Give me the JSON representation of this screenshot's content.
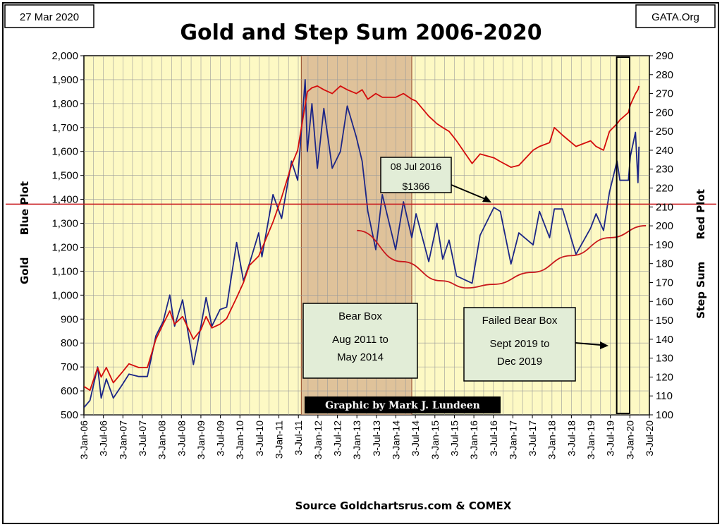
{
  "header": {
    "date_label": "27 Mar 2020",
    "source_tag": "GATA.Org",
    "title": "Gold and Step Sum 2006-2020"
  },
  "footer": {
    "source": "Source Goldchartsrus.com & COMEX",
    "credit": "Graphic by Mark J. Lundeen"
  },
  "annotations": {
    "bear_box": [
      "Bear Box",
      "Aug 2011 to",
      "May 2014"
    ],
    "failed_bear_box": [
      "Failed Bear Box",
      "Sept 2019 to",
      "Dec 2019"
    ],
    "callout": [
      "08 Jul 2016",
      "$1366"
    ]
  },
  "colors": {
    "plot_background": "#fdf9c4",
    "gold_series": "#1c2687",
    "step_sum_series": "#d40c0c",
    "bear_box_fill": "#dfc29a",
    "reference_line": "#c8181c",
    "callout_fill": "#e2edd7"
  },
  "chart_data": {
    "type": "line",
    "title": "Gold and Step Sum 2006-2020",
    "xlabel": "",
    "ylabel_left": "Gold      Blue Plot",
    "ylabel_right": "Step Sum      Red Plot",
    "x_ticks": [
      "3-Jan-06",
      "3-Jul-06",
      "3-Jan-07",
      "3-Jul-07",
      "3-Jan-08",
      "3-Jul-08",
      "3-Jan-09",
      "3-Jul-09",
      "3-Jan-10",
      "3-Jul-10",
      "3-Jan-11",
      "3-Jul-11",
      "3-Jan-12",
      "3-Jul-12",
      "3-Jan-13",
      "3-Jul-13",
      "3-Jan-14",
      "3-Jul-14",
      "3-Jan-15",
      "3-Jul-15",
      "3-Jan-16",
      "3-Jul-16",
      "3-Jan-17",
      "3-Jul-17",
      "3-Jan-18",
      "3-Jul-18",
      "3-Jan-19",
      "3-Jul-19",
      "3-Jan-20",
      "3-Jul-20"
    ],
    "xlim": [
      "2006-01-03",
      "2020-07-03"
    ],
    "y_left": {
      "lim": [
        500,
        2000
      ],
      "ticks": [
        "500",
        "600",
        "700",
        "800",
        "900",
        "1,000",
        "1,100",
        "1,200",
        "1,300",
        "1,400",
        "1,500",
        "1,600",
        "1,700",
        "1,800",
        "1,900",
        "2,000"
      ]
    },
    "y_right": {
      "lim": [
        100,
        290
      ],
      "ticks": [
        "100",
        "110",
        "120",
        "130",
        "140",
        "150",
        "160",
        "170",
        "180",
        "190",
        "200",
        "210",
        "220",
        "230",
        "240",
        "250",
        "260",
        "270",
        "280",
        "290"
      ]
    },
    "grid": true,
    "series": [
      {
        "name": "Gold",
        "axis": "left",
        "points": [
          [
            "2006-01-03",
            530
          ],
          [
            "2006-03-01",
            560
          ],
          [
            "2006-05-12",
            700
          ],
          [
            "2006-06-14",
            570
          ],
          [
            "2006-08-01",
            650
          ],
          [
            "2006-10-05",
            570
          ],
          [
            "2007-01-03",
            630
          ],
          [
            "2007-03-01",
            670
          ],
          [
            "2007-06-01",
            660
          ],
          [
            "2007-08-20",
            660
          ],
          [
            "2007-11-08",
            830
          ],
          [
            "2008-01-15",
            890
          ],
          [
            "2008-03-17",
            1000
          ],
          [
            "2008-05-01",
            870
          ],
          [
            "2008-07-15",
            980
          ],
          [
            "2008-10-24",
            710
          ],
          [
            "2009-01-02",
            870
          ],
          [
            "2009-02-20",
            990
          ],
          [
            "2009-04-15",
            870
          ],
          [
            "2009-07-01",
            940
          ],
          [
            "2009-09-01",
            950
          ],
          [
            "2009-12-03",
            1220
          ],
          [
            "2010-02-05",
            1060
          ],
          [
            "2010-04-01",
            1130
          ],
          [
            "2010-06-28",
            1260
          ],
          [
            "2010-07-28",
            1160
          ],
          [
            "2010-11-09",
            1420
          ],
          [
            "2011-01-28",
            1320
          ],
          [
            "2011-05-01",
            1560
          ],
          [
            "2011-06-28",
            1480
          ],
          [
            "2011-09-06",
            1900
          ],
          [
            "2011-09-26",
            1600
          ],
          [
            "2011-11-08",
            1800
          ],
          [
            "2011-12-29",
            1530
          ],
          [
            "2012-02-28",
            1780
          ],
          [
            "2012-05-16",
            1530
          ],
          [
            "2012-08-01",
            1600
          ],
          [
            "2012-10-04",
            1790
          ],
          [
            "2012-12-28",
            1660
          ],
          [
            "2013-02-20",
            1560
          ],
          [
            "2013-04-15",
            1350
          ],
          [
            "2013-06-28",
            1190
          ],
          [
            "2013-08-28",
            1420
          ],
          [
            "2013-12-31",
            1190
          ],
          [
            "2014-03-14",
            1390
          ],
          [
            "2014-06-01",
            1240
          ],
          [
            "2014-07-10",
            1340
          ],
          [
            "2014-11-06",
            1140
          ],
          [
            "2015-01-22",
            1300
          ],
          [
            "2015-03-17",
            1150
          ],
          [
            "2015-05-15",
            1230
          ],
          [
            "2015-07-24",
            1080
          ],
          [
            "2015-12-17",
            1050
          ],
          [
            "2016-03-01",
            1250
          ],
          [
            "2016-07-08",
            1366
          ],
          [
            "2016-09-06",
            1350
          ],
          [
            "2016-12-15",
            1130
          ],
          [
            "2017-02-27",
            1260
          ],
          [
            "2017-07-10",
            1210
          ],
          [
            "2017-09-08",
            1350
          ],
          [
            "2017-12-12",
            1240
          ],
          [
            "2018-01-25",
            1360
          ],
          [
            "2018-04-11",
            1360
          ],
          [
            "2018-08-16",
            1170
          ],
          [
            "2018-12-31",
            1280
          ],
          [
            "2019-02-20",
            1340
          ],
          [
            "2019-05-01",
            1270
          ],
          [
            "2019-06-25",
            1430
          ],
          [
            "2019-09-04",
            1560
          ],
          [
            "2019-10-01",
            1480
          ],
          [
            "2019-12-20",
            1480
          ],
          [
            "2020-01-07",
            1580
          ],
          [
            "2020-02-24",
            1680
          ],
          [
            "2020-03-18",
            1470
          ],
          [
            "2020-03-27",
            1620
          ]
        ]
      },
      {
        "name": "Step Sum",
        "axis": "right",
        "points": [
          [
            "2006-01-03",
            115
          ],
          [
            "2006-03-01",
            113
          ],
          [
            "2006-05-12",
            125
          ],
          [
            "2006-06-14",
            120
          ],
          [
            "2006-08-01",
            125
          ],
          [
            "2006-10-05",
            117
          ],
          [
            "2007-01-03",
            123
          ],
          [
            "2007-03-01",
            127
          ],
          [
            "2007-06-01",
            125
          ],
          [
            "2007-08-20",
            125
          ],
          [
            "2007-11-08",
            140
          ],
          [
            "2008-01-15",
            148
          ],
          [
            "2008-03-17",
            155
          ],
          [
            "2008-05-01",
            148
          ],
          [
            "2008-07-15",
            152
          ],
          [
            "2008-10-24",
            140
          ],
          [
            "2009-01-02",
            145
          ],
          [
            "2009-02-20",
            152
          ],
          [
            "2009-04-15",
            146
          ],
          [
            "2009-07-01",
            148
          ],
          [
            "2009-09-01",
            151
          ],
          [
            "2009-12-03",
            162
          ],
          [
            "2010-02-05",
            170
          ],
          [
            "2010-04-01",
            179
          ],
          [
            "2010-06-28",
            184
          ],
          [
            "2010-07-28",
            188
          ],
          [
            "2010-11-09",
            202
          ],
          [
            "2011-01-28",
            215
          ],
          [
            "2011-05-01",
            232
          ],
          [
            "2011-06-28",
            240
          ],
          [
            "2011-09-06",
            264
          ],
          [
            "2011-09-26",
            271
          ],
          [
            "2011-11-08",
            273
          ],
          [
            "2011-12-29",
            274
          ],
          [
            "2012-02-28",
            272
          ],
          [
            "2012-05-16",
            270
          ],
          [
            "2012-08-01",
            274
          ],
          [
            "2012-10-04",
            272
          ],
          [
            "2012-12-28",
            270
          ],
          [
            "2013-02-20",
            272
          ],
          [
            "2013-04-15",
            267
          ],
          [
            "2013-06-28",
            270
          ],
          [
            "2013-08-28",
            268
          ],
          [
            "2013-12-31",
            268
          ],
          [
            "2014-03-14",
            270
          ],
          [
            "2014-06-01",
            267
          ],
          [
            "2014-07-10",
            266
          ],
          [
            "2014-11-06",
            258
          ],
          [
            "2015-01-22",
            254
          ],
          [
            "2015-03-17",
            252
          ],
          [
            "2015-05-15",
            250
          ],
          [
            "2015-07-24",
            245
          ],
          [
            "2015-12-17",
            233
          ],
          [
            "2016-03-01",
            238
          ],
          [
            "2016-07-08",
            236
          ],
          [
            "2016-09-06",
            234
          ],
          [
            "2016-12-15",
            231
          ],
          [
            "2017-02-27",
            232
          ],
          [
            "2017-07-10",
            240
          ],
          [
            "2017-09-08",
            242
          ],
          [
            "2017-12-12",
            244
          ],
          [
            "2018-01-25",
            252
          ],
          [
            "2018-04-11",
            248
          ],
          [
            "2018-08-16",
            242
          ],
          [
            "2018-12-31",
            245
          ],
          [
            "2019-02-20",
            242
          ],
          [
            "2019-05-01",
            240
          ],
          [
            "2019-06-25",
            250
          ],
          [
            "2019-09-04",
            254
          ],
          [
            "2019-10-01",
            256
          ],
          [
            "2019-12-20",
            260
          ],
          [
            "2020-01-07",
            264
          ],
          [
            "2020-02-24",
            270
          ],
          [
            "2020-03-18",
            272
          ],
          [
            "2020-03-27",
            274
          ]
        ]
      }
    ],
    "reference_line": {
      "axis": "left",
      "value": 1380
    },
    "trend_curve": {
      "axis": "left",
      "points": [
        [
          "2013-01-03",
          1270
        ],
        [
          "2014-03-01",
          1140
        ],
        [
          "2015-03-01",
          1060
        ],
        [
          "2015-11-01",
          1030
        ],
        [
          "2016-07-01",
          1045
        ],
        [
          "2017-07-01",
          1095
        ],
        [
          "2018-07-01",
          1165
        ],
        [
          "2019-07-01",
          1240
        ],
        [
          "2020-06-01",
          1290
        ]
      ]
    },
    "bear_box": {
      "x": [
        "2011-08-01",
        "2014-05-31"
      ]
    },
    "failed_bear_box": {
      "x": [
        "2019-09-01",
        "2019-12-31"
      ]
    }
  }
}
